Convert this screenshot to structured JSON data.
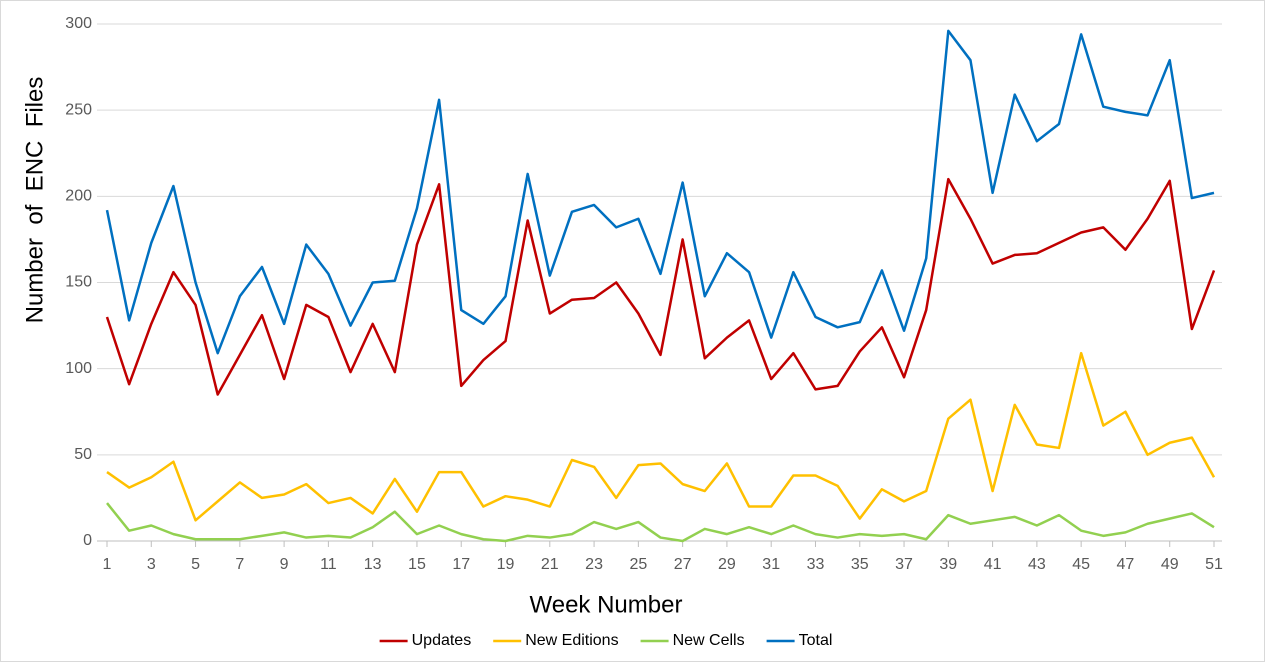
{
  "chart_data": {
    "type": "line",
    "x_label": "Week Number",
    "y_label": "Number  of  ENC  Files",
    "x": [
      1,
      2,
      3,
      4,
      5,
      6,
      7,
      8,
      9,
      10,
      11,
      12,
      13,
      14,
      15,
      16,
      17,
      18,
      19,
      20,
      21,
      22,
      23,
      24,
      25,
      26,
      27,
      28,
      29,
      30,
      31,
      32,
      33,
      34,
      35,
      36,
      37,
      38,
      39,
      40,
      41,
      42,
      43,
      44,
      45,
      46,
      47,
      48,
      49,
      50,
      51
    ],
    "xlim": [
      1,
      51
    ],
    "xticks": [
      1,
      3,
      5,
      7,
      9,
      11,
      13,
      15,
      17,
      19,
      21,
      23,
      25,
      27,
      29,
      31,
      33,
      35,
      37,
      39,
      41,
      43,
      45,
      47,
      49,
      51
    ],
    "ylim": [
      0,
      300
    ],
    "yticks": [
      0,
      50,
      100,
      150,
      200,
      250,
      300
    ],
    "grid": true,
    "legend": "bottom",
    "series": [
      {
        "name": "Updates",
        "color": "#c00000",
        "values": [
          130,
          91,
          126,
          156,
          137,
          85,
          108,
          131,
          94,
          137,
          130,
          98,
          126,
          98,
          172,
          207,
          90,
          105,
          116,
          186,
          132,
          140,
          141,
          150,
          132,
          108,
          175,
          106,
          118,
          128,
          94,
          109,
          88,
          90,
          110,
          124,
          95,
          134,
          210,
          187,
          161,
          166,
          167,
          173,
          179,
          182,
          169,
          187,
          209,
          123,
          157
        ]
      },
      {
        "name": "New Editions",
        "color": "#ffc000",
        "values": [
          40,
          31,
          37,
          46,
          12,
          23,
          34,
          25,
          27,
          33,
          22,
          25,
          16,
          36,
          17,
          40,
          40,
          20,
          26,
          24,
          20,
          47,
          43,
          25,
          44,
          45,
          33,
          29,
          45,
          20,
          20,
          38,
          38,
          32,
          13,
          30,
          23,
          29,
          71,
          82,
          29,
          79,
          56,
          54,
          109,
          67,
          75,
          50,
          57,
          60,
          37
        ]
      },
      {
        "name": "New Cells",
        "color": "#92d050",
        "values": [
          22,
          6,
          9,
          4,
          1,
          1,
          1,
          3,
          5,
          2,
          3,
          2,
          8,
          17,
          4,
          9,
          4,
          1,
          0,
          3,
          2,
          4,
          11,
          7,
          11,
          2,
          0,
          7,
          4,
          8,
          4,
          9,
          4,
          2,
          4,
          3,
          4,
          1,
          15,
          10,
          12,
          14,
          9,
          15,
          6,
          3,
          5,
          10,
          13,
          16,
          8
        ]
      },
      {
        "name": "Total",
        "color": "#0070c0",
        "values": [
          192,
          128,
          173,
          206,
          150,
          109,
          142,
          159,
          126,
          172,
          155,
          125,
          150,
          151,
          193,
          256,
          134,
          126,
          142,
          213,
          154,
          191,
          195,
          182,
          187,
          155,
          208,
          142,
          167,
          156,
          118,
          156,
          130,
          124,
          127,
          157,
          122,
          164,
          296,
          279,
          202,
          259,
          232,
          242,
          294,
          252,
          249,
          247,
          279,
          199,
          202
        ]
      }
    ]
  }
}
